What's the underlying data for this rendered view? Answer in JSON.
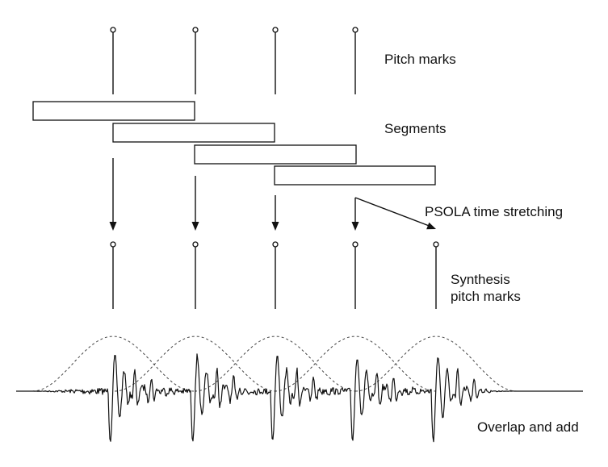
{
  "labels": {
    "pitch_marks": "Pitch marks",
    "segments": "Segments",
    "psola": "PSOLA time stretching",
    "synthesis_line1": "Synthesis",
    "synthesis_line2": "pitch marks",
    "overlap_add": "Overlap and add"
  },
  "colors": {
    "stroke": "#111111",
    "window": "#444444",
    "background": "#ffffff"
  },
  "structure": {
    "analysis_pitch_marks": 4,
    "segments": 4,
    "synthesis_pitch_marks": 5,
    "overlap_windows": 5
  }
}
